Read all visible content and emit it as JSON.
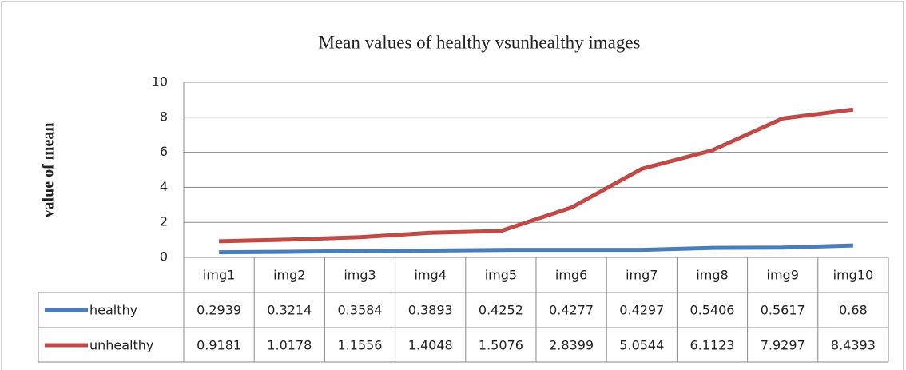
{
  "chart_data": {
    "type": "line",
    "title": "Mean values of healthy vsunhealthy images",
    "y_label": "value of mean",
    "categories": [
      "img1",
      "img2",
      "img3",
      "img4",
      "img5",
      "img6",
      "img7",
      "img8",
      "img9",
      "img10"
    ],
    "series": [
      {
        "name": "healthy",
        "color": "#4a7ebb",
        "values": [
          0.2939,
          0.3214,
          0.3584,
          0.3893,
          0.4252,
          0.4277,
          0.4297,
          0.5406,
          0.5617,
          0.68
        ]
      },
      {
        "name": "unhealthy",
        "color": "#be4b48",
        "values": [
          0.9181,
          1.0178,
          1.1556,
          1.4048,
          1.5076,
          2.8399,
          5.0544,
          6.1123,
          7.9297,
          8.4393
        ]
      }
    ],
    "ylim": [
      0,
      10
    ],
    "yticks": [
      0,
      2,
      4,
      6,
      8,
      10
    ],
    "grid": true
  }
}
